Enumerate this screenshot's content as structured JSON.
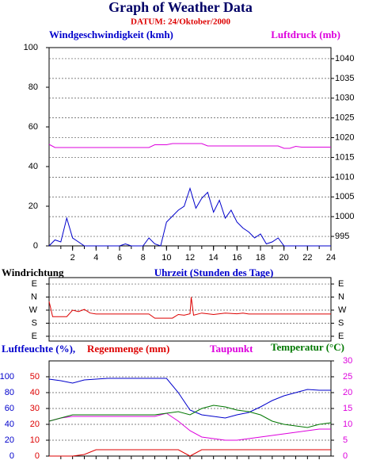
{
  "chart_data": [
    {
      "type": "line",
      "title": "Graph of Weather Data",
      "subtitle": "DATUM: 24/Oktober/2000",
      "x": [
        0,
        0.5,
        1,
        1.5,
        2,
        2.5,
        3,
        3.5,
        4,
        4.5,
        5,
        5.5,
        6,
        6.5,
        7,
        7.5,
        8,
        8.5,
        9,
        9.5,
        10,
        10.5,
        11,
        11.5,
        12,
        12.5,
        13,
        13.5,
        14,
        14.5,
        15,
        15.5,
        16,
        16.5,
        17,
        17.5,
        18,
        18.5,
        19,
        19.5,
        20,
        20.5,
        21,
        21.5,
        22,
        22.5,
        23,
        23.5,
        24
      ],
      "xlim": [
        0,
        24
      ],
      "xticks": [
        2,
        4,
        6,
        8,
        10,
        12,
        14,
        16,
        18,
        20,
        22,
        24
      ],
      "minor_xticks": true,
      "ylim": [
        0,
        100
      ],
      "yticks": [
        0,
        20,
        40,
        60,
        80,
        100
      ],
      "y2lim": [
        992.6,
        1042.8
      ],
      "y2ticks": [
        995,
        1000,
        1005,
        1010,
        1015,
        1020,
        1025,
        1030,
        1035,
        1040
      ],
      "grid": true,
      "grid_axis": "y2",
      "series": [
        {
          "name": "Windgeschwindigkeit (kmh)",
          "color": "#0000cc",
          "axis": "y",
          "values": [
            0,
            3,
            2,
            14,
            4,
            2,
            0,
            0,
            0,
            0,
            0,
            0,
            0,
            1,
            0,
            0,
            0,
            4,
            1,
            0,
            12,
            15,
            18,
            20,
            29,
            19,
            24,
            27,
            17,
            23,
            14,
            18,
            12,
            9,
            7,
            4,
            6,
            1,
            2,
            4,
            0,
            0,
            0,
            0,
            0,
            0,
            0,
            0,
            0
          ]
        },
        {
          "name": "Luftdruck (mb)",
          "color": "#dd00dd",
          "axis": "y2",
          "values": [
            1018.3,
            1017.5,
            1017.5,
            1017.5,
            1017.5,
            1017.5,
            1017.5,
            1017.5,
            1017.5,
            1017.5,
            1017.5,
            1017.5,
            1017.5,
            1017.5,
            1017.5,
            1017.5,
            1017.5,
            1017.5,
            1018.2,
            1018.2,
            1018.2,
            1018.5,
            1018.5,
            1018.5,
            1018.5,
            1018.5,
            1018.5,
            1017.9,
            1017.9,
            1017.9,
            1017.9,
            1017.9,
            1017.9,
            1017.9,
            1017.9,
            1017.9,
            1017.9,
            1017.9,
            1017.9,
            1017.9,
            1017.3,
            1017.3,
            1017.8,
            1017.6,
            1017.6,
            1017.6,
            1017.6,
            1017.6,
            1017.6
          ]
        }
      ]
    },
    {
      "type": "line",
      "title": "Windrichtung",
      "xlabel": "Uhrzeit (Stunden des Tage)",
      "x": [
        0,
        0.3,
        0.6,
        1.5,
        2,
        2.5,
        3,
        3.5,
        4,
        8.5,
        9,
        10.5,
        11,
        11.5,
        12,
        12.1,
        12.3,
        13,
        14,
        15,
        16,
        16.5,
        17,
        24
      ],
      "xlim": [
        0,
        24
      ],
      "ylim": [
        57,
        494
      ],
      "yticks": [
        {
          "value": 450,
          "label": "E"
        },
        {
          "value": 360,
          "label": "N"
        },
        {
          "value": 270,
          "label": "W"
        },
        {
          "value": 180,
          "label": "S"
        },
        {
          "value": 90,
          "label": "E"
        }
      ],
      "mirror_y": true,
      "grid": true,
      "grid_axis": "y",
      "series": [
        {
          "color": "#dd0000",
          "axis": "y",
          "values": [
            330,
            225,
            225,
            225,
            270,
            260,
            275,
            250,
            243,
            243,
            215,
            215,
            240,
            235,
            245,
            360,
            235,
            250,
            240,
            250,
            245,
            250,
            243,
            243
          ]
        }
      ]
    },
    {
      "type": "line",
      "x": [
        0,
        1,
        2,
        3,
        4,
        5,
        6,
        7,
        8,
        9,
        10,
        11,
        12,
        13,
        14,
        15,
        16,
        17,
        18,
        19,
        20,
        21,
        22,
        23,
        24
      ],
      "xlim": [
        0,
        24
      ],
      "minor_xticks": true,
      "ylim": [
        0,
        120
      ],
      "yticks": [
        0,
        20,
        40,
        60,
        80,
        100
      ],
      "y3lim": [
        0,
        60
      ],
      "y3ticks": [
        0,
        10,
        20,
        30,
        40,
        50
      ],
      "y2lim": [
        0,
        30
      ],
      "y2ticks": [
        0,
        5,
        10,
        15,
        20,
        25,
        30
      ],
      "grid": true,
      "grid_axis": "y2",
      "tick_colors": true,
      "series": [
        {
          "name": "Luftfeuchte (%),",
          "color": "#0000cc",
          "axis": "y",
          "values": [
            97,
            95,
            92,
            96,
            97,
            98,
            98,
            98,
            98,
            98,
            98,
            80,
            58,
            52,
            50,
            48,
            52,
            55,
            62,
            70,
            76,
            80,
            84,
            83,
            83
          ]
        },
        {
          "name": "Regenmenge (mm)",
          "color": "#dd0000",
          "axis": "y3",
          "values": [
            0,
            0,
            0,
            1,
            4,
            4,
            4,
            4,
            4,
            4,
            4,
            4,
            0,
            4,
            4,
            4,
            4,
            4,
            4,
            4,
            4,
            4,
            4,
            4,
            4
          ]
        },
        {
          "name": "Taupunkt",
          "color": "#dd00dd",
          "axis": "y2",
          "values": [
            11,
            12,
            12.5,
            12.5,
            12.5,
            12.5,
            12.5,
            12.5,
            12.5,
            12.5,
            13.5,
            11,
            8,
            6,
            5.5,
            5,
            5,
            5.5,
            6,
            6.5,
            7,
            7.5,
            8,
            8.5,
            8.5
          ]
        },
        {
          "name": "Temperatur (°C)",
          "color": "#007700",
          "axis": "y2",
          "values": [
            11,
            12,
            13,
            13,
            13,
            13,
            13,
            13,
            13,
            13,
            13.5,
            14,
            13,
            15,
            16,
            15.5,
            14.5,
            14,
            13,
            11,
            10,
            9.5,
            9,
            10,
            10.5
          ]
        }
      ]
    }
  ]
}
